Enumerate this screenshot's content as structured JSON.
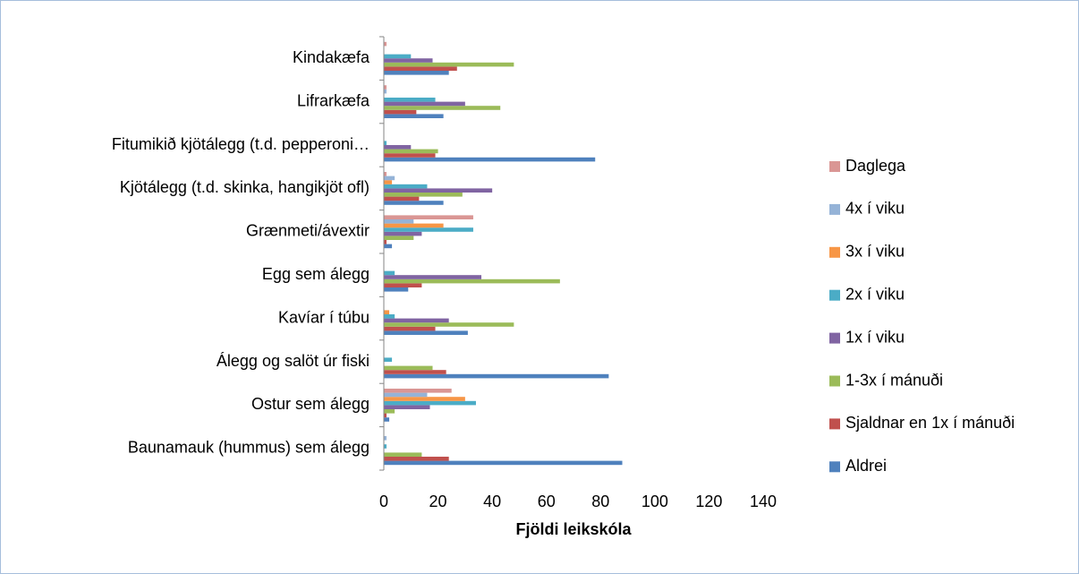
{
  "chart_data": {
    "type": "barh",
    "xlabel": "Fjöldi leikskóla",
    "categories": [
      "Kindakæfa",
      "Lifrarkæfa",
      "Fitumikið kjötálegg (t.d. pepperoni…",
      "Kjötálegg (t.d. skinka, hangikjöt ofl)",
      "Grænmeti/ávextir",
      "Egg sem álegg",
      "Kavíar í túbu",
      "Álegg og salöt úr fiski",
      "Ostur sem álegg",
      "Baunamauk (hummus) sem álegg"
    ],
    "series": [
      {
        "name": "Aldrei",
        "color": "#4f81bd",
        "values": [
          24,
          22,
          78,
          22,
          3,
          9,
          31,
          83,
          2,
          88
        ]
      },
      {
        "name": "Sjaldnar en 1x í mánuði",
        "color": "#c0504d",
        "values": [
          27,
          12,
          19,
          13,
          1,
          14,
          19,
          23,
          1,
          24
        ]
      },
      {
        "name": "1-3x í mánuði",
        "color": "#9bbb59",
        "values": [
          48,
          43,
          20,
          29,
          11,
          65,
          48,
          18,
          4,
          14
        ]
      },
      {
        "name": "1x í viku",
        "color": "#8064a2",
        "values": [
          18,
          30,
          10,
          40,
          14,
          36,
          24,
          0,
          17,
          0
        ]
      },
      {
        "name": "2x í viku",
        "color": "#4bacc6",
        "values": [
          10,
          19,
          1,
          16,
          33,
          4,
          4,
          3,
          34,
          1
        ]
      },
      {
        "name": "3x í viku",
        "color": "#f79646",
        "values": [
          0,
          0,
          0,
          3,
          22,
          0,
          2,
          0,
          30,
          0
        ]
      },
      {
        "name": "4x í viku",
        "color": "#95b3d7",
        "values": [
          0,
          1,
          0,
          4,
          11,
          0,
          0,
          0,
          16,
          1
        ]
      },
      {
        "name": "Daglega",
        "color": "#da9694",
        "values": [
          1,
          1,
          0,
          1,
          33,
          0,
          0,
          0,
          25,
          0
        ]
      }
    ],
    "xlim": [
      0,
      140
    ],
    "xticks": [
      0,
      20,
      40,
      60,
      80,
      100,
      120,
      140
    ],
    "grid": false,
    "legend": "right"
  }
}
